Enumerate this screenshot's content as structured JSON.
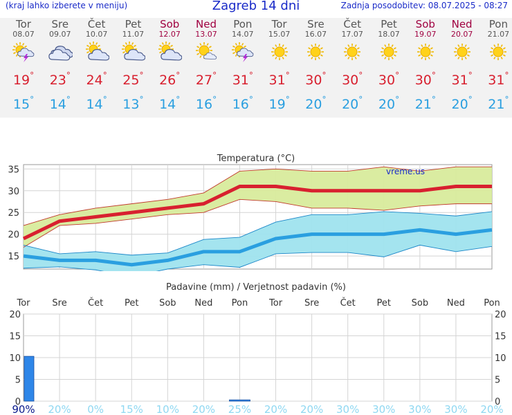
{
  "header": {
    "left": "(kraj lahko izberete v meniju)",
    "title": "Zagreb 14 dni",
    "right": "Zadnja posodobitev: 08.07.2025 - 08:27"
  },
  "days": [
    {
      "name": "Tor",
      "date": "08.07",
      "weekend": false,
      "icon": "sun-cloud-thunder",
      "max": "19",
      "min": "15"
    },
    {
      "name": "Sre",
      "date": "09.07",
      "weekend": false,
      "icon": "cloud",
      "max": "23",
      "min": "14"
    },
    {
      "name": "Čet",
      "date": "10.07",
      "weekend": false,
      "icon": "sun-cloud",
      "max": "24",
      "min": "14"
    },
    {
      "name": "Pet",
      "date": "11.07",
      "weekend": false,
      "icon": "sun-cloud",
      "max": "25",
      "min": "13"
    },
    {
      "name": "Sob",
      "date": "12.07",
      "weekend": true,
      "icon": "sun-cloud",
      "max": "26",
      "min": "14"
    },
    {
      "name": "Ned",
      "date": "13.07",
      "weekend": true,
      "icon": "sun-small-cloud",
      "max": "27",
      "min": "16"
    },
    {
      "name": "Pon",
      "date": "14.07",
      "weekend": false,
      "icon": "sun-cloud-thunder",
      "max": "31",
      "min": "16"
    },
    {
      "name": "Tor",
      "date": "15.07",
      "weekend": false,
      "icon": "sun",
      "max": "31",
      "min": "19"
    },
    {
      "name": "Sre",
      "date": "16.07",
      "weekend": false,
      "icon": "sun",
      "max": "30",
      "min": "20"
    },
    {
      "name": "Čet",
      "date": "17.07",
      "weekend": false,
      "icon": "sun",
      "max": "30",
      "min": "20"
    },
    {
      "name": "Pet",
      "date": "18.07",
      "weekend": false,
      "icon": "sun",
      "max": "30",
      "min": "20"
    },
    {
      "name": "Sob",
      "date": "19.07",
      "weekend": true,
      "icon": "sun",
      "max": "30",
      "min": "21"
    },
    {
      "name": "Ned",
      "date": "20.07",
      "weekend": true,
      "icon": "sun",
      "max": "31",
      "min": "20"
    },
    {
      "name": "Pon",
      "date": "21.07",
      "weekend": false,
      "icon": "sun",
      "max": "31",
      "min": "21"
    }
  ],
  "degree_symbol": "°",
  "colors": {
    "max": "#d8202f",
    "min": "#2a9fe0",
    "max_band": "#d8eb9c",
    "min_band": "#9fe3ee",
    "bar": "#2e86e8",
    "weekend": "#a00040",
    "prob_high": "#0a1a8c",
    "prob_low": "#8fd8f2"
  },
  "chart_data": [
    {
      "type": "line",
      "title": "Temperatura (°C)",
      "watermark": "vreme.us",
      "ylim": [
        12,
        36
      ],
      "yticks": [
        15,
        20,
        25,
        30,
        35
      ],
      "x": [
        "08.07",
        "09.07",
        "10.07",
        "11.07",
        "12.07",
        "13.07",
        "14.07",
        "15.07",
        "16.07",
        "17.07",
        "18.07",
        "19.07",
        "20.07",
        "21.07"
      ],
      "grid": true,
      "series": [
        {
          "role": "max",
          "values": [
            19,
            23,
            24,
            25,
            26,
            27,
            31,
            31,
            30,
            30,
            30,
            30,
            31,
            31
          ]
        },
        {
          "role": "min",
          "values": [
            15,
            14,
            14,
            13,
            14,
            16,
            16,
            19,
            20,
            20,
            20,
            21,
            20,
            21
          ]
        },
        {
          "role": "max_upper",
          "values": [
            22,
            24.5,
            26,
            27,
            28,
            29.5,
            34.5,
            35,
            34.5,
            34.5,
            35.5,
            34.5,
            35.5,
            35.5
          ]
        },
        {
          "role": "max_lower",
          "values": [
            17,
            22,
            22.5,
            23.5,
            24.5,
            25,
            28,
            27.5,
            26,
            26,
            25.5,
            26.5,
            27,
            27
          ]
        },
        {
          "role": "min_upper",
          "values": [
            17.5,
            15.5,
            16,
            15.2,
            15.7,
            18.8,
            19.3,
            22.8,
            24.5,
            24.5,
            25.2,
            24.8,
            24.2,
            25.2
          ]
        },
        {
          "role": "min_lower",
          "values": [
            12.2,
            12.5,
            11.8,
            10.3,
            12,
            13,
            12.4,
            15.5,
            15.8,
            15.8,
            14.8,
            17.5,
            16,
            17.2
          ]
        }
      ]
    },
    {
      "type": "bar",
      "title": "Padavine (mm) / Verjetnost padavin (%)",
      "ylim": [
        0,
        20
      ],
      "yticks": [
        0,
        5,
        10,
        15,
        20
      ],
      "categories": [
        "Tor",
        "Sre",
        "Čet",
        "Pet",
        "Sob",
        "Ned",
        "Pon",
        "Tor",
        "Sre",
        "Čet",
        "Pet",
        "Sob",
        "Ned",
        "Pon"
      ],
      "values": [
        10.3,
        0,
        0,
        0,
        0,
        0,
        0.3,
        0,
        0,
        0,
        0,
        0,
        0,
        0
      ],
      "probability": [
        "90%",
        "20%",
        "0%",
        "15%",
        "10%",
        "20%",
        "25%",
        "20%",
        "20%",
        "30%",
        "30%",
        "30%",
        "30%",
        "20%"
      ],
      "probability_values": [
        90,
        20,
        0,
        15,
        10,
        20,
        25,
        20,
        20,
        30,
        30,
        30,
        30,
        20
      ],
      "grid": true
    }
  ]
}
